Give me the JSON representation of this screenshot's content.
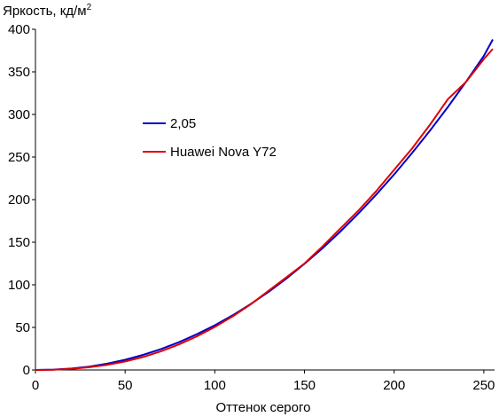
{
  "chart_data": {
    "type": "line",
    "title": "",
    "ylabel": "Яркость, кд/м",
    "ylabel_sup": "2",
    "xlabel": "Оттенок серого",
    "xlim": [
      0,
      255
    ],
    "ylim": [
      0,
      400
    ],
    "xticks": [
      0,
      50,
      100,
      150,
      200,
      250
    ],
    "yticks": [
      0,
      50,
      100,
      150,
      200,
      250,
      300,
      350,
      400
    ],
    "grid": false,
    "legend_position": "center-left",
    "series": [
      {
        "name": "2,05",
        "color": "#0000cc",
        "x": [
          0,
          10,
          20,
          30,
          40,
          50,
          60,
          70,
          80,
          90,
          100,
          110,
          120,
          130,
          140,
          150,
          160,
          170,
          180,
          190,
          200,
          210,
          220,
          230,
          240,
          250,
          255
        ],
        "y": [
          0,
          0.4,
          1.7,
          4.0,
          7.4,
          12.0,
          17.7,
          24.6,
          32.6,
          42.0,
          52.5,
          64.3,
          77.4,
          91.8,
          107.5,
          124.6,
          142.8,
          162.5,
          183.5,
          205.9,
          229.6,
          254.7,
          281.1,
          308.9,
          338.1,
          368.7,
          388
        ]
      },
      {
        "name": "Huawei Nova Y72",
        "color": "#dd0000",
        "x": [
          0,
          10,
          20,
          30,
          40,
          50,
          60,
          70,
          80,
          90,
          100,
          110,
          120,
          130,
          140,
          150,
          160,
          170,
          180,
          190,
          200,
          210,
          220,
          230,
          240,
          250,
          255
        ],
        "y": [
          0,
          0.3,
          1.3,
          3.2,
          6.0,
          10.0,
          15.2,
          22.0,
          30.0,
          39.5,
          50.5,
          63.0,
          77.0,
          93.0,
          109.0,
          125.0,
          145.0,
          166.0,
          187.0,
          210.0,
          235.0,
          260.0,
          288.0,
          318.0,
          338.0,
          365.0,
          377
        ]
      }
    ]
  }
}
